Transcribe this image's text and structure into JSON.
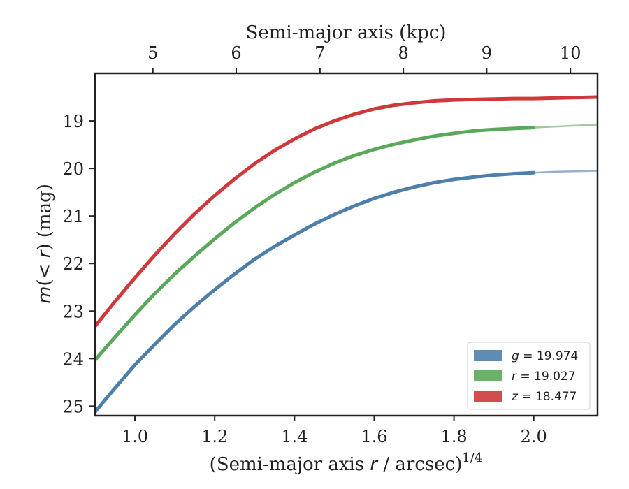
{
  "chart_data": {
    "type": "line",
    "xlabel": "(Semi-major axis",
    "xlabel_var": "r",
    "xlabel_unit": " / arcsec)",
    "xlabel_exp": "1/4",
    "ylabel_var": "m",
    "ylabel_paren_open": "(",
    "ylabel_lt": "<",
    "ylabel_r": "r",
    "ylabel_paren_close": ")",
    "ylabel_unit": " (mag)",
    "top_xlabel": "Semi-major axis (kpc)",
    "xlim": [
      0.9,
      2.16
    ],
    "ylim": [
      25.2,
      18.0
    ],
    "y_inverted": true,
    "x_ticks": [
      "1.0",
      "1.2",
      "1.4",
      "1.6",
      "1.8",
      "2.0"
    ],
    "x_tick_values": [
      1.0,
      1.2,
      1.4,
      1.6,
      1.8,
      2.0
    ],
    "y_ticks": [
      "19",
      "20",
      "21",
      "22",
      "23",
      "24",
      "25"
    ],
    "y_tick_values": [
      19,
      20,
      21,
      22,
      23,
      24,
      25
    ],
    "top_ticks": [
      "5",
      "6",
      "7",
      "8",
      "9",
      "10"
    ],
    "top_tick_values_x": [
      1.045,
      1.254,
      1.464,
      1.673,
      1.882,
      2.092
    ],
    "grid": false,
    "legend_position": "lower-right",
    "x": [
      0.9,
      0.95,
      1.0,
      1.05,
      1.1,
      1.15,
      1.2,
      1.25,
      1.3,
      1.35,
      1.4,
      1.45,
      1.5,
      1.55,
      1.6,
      1.65,
      1.7,
      1.75,
      1.8,
      1.85,
      1.9,
      1.95,
      2.0,
      2.05,
      2.1,
      2.16
    ],
    "series": [
      {
        "band": "g",
        "value": "19.974",
        "legend_eq": " = 19.974",
        "color": "#4e7fab",
        "solid_until_x": 2.0,
        "values": [
          25.12,
          24.62,
          24.13,
          23.7,
          23.28,
          22.9,
          22.55,
          22.22,
          21.91,
          21.64,
          21.4,
          21.17,
          20.97,
          20.79,
          20.63,
          20.5,
          20.39,
          20.3,
          20.23,
          20.18,
          20.14,
          20.11,
          20.09,
          20.07,
          20.06,
          20.05
        ]
      },
      {
        "band": "r",
        "value": "19.027",
        "legend_eq": " = 19.027",
        "color": "#5aa85a",
        "solid_until_x": 2.0,
        "values": [
          24.03,
          23.55,
          23.08,
          22.63,
          22.22,
          21.84,
          21.48,
          21.14,
          20.83,
          20.55,
          20.3,
          20.08,
          19.89,
          19.73,
          19.6,
          19.49,
          19.4,
          19.32,
          19.26,
          19.21,
          19.18,
          19.16,
          19.14,
          19.12,
          19.1,
          19.08
        ]
      },
      {
        "band": "z",
        "value": "18.477",
        "legend_eq": " = 18.477",
        "color": "#d0393c",
        "solid_until_x": 2.16,
        "values": [
          23.32,
          22.8,
          22.3,
          21.82,
          21.37,
          20.95,
          20.57,
          20.22,
          19.9,
          19.62,
          19.38,
          19.17,
          19.0,
          18.86,
          18.75,
          18.67,
          18.62,
          18.58,
          18.56,
          18.55,
          18.54,
          18.53,
          18.53,
          18.52,
          18.51,
          18.5
        ]
      }
    ]
  }
}
